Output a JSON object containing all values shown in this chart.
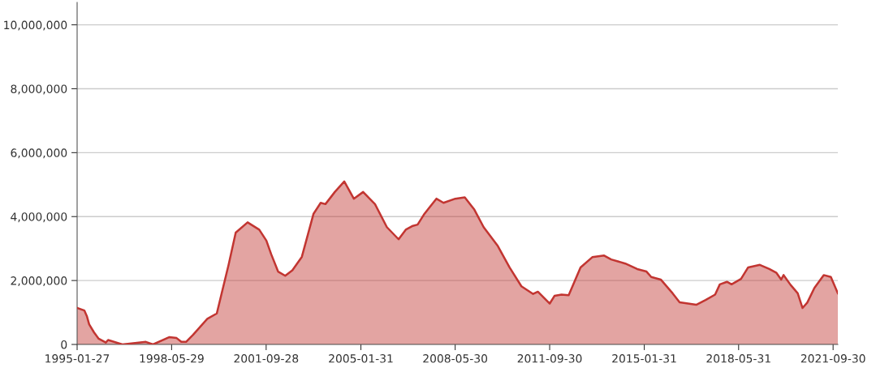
{
  "chart_data": {
    "type": "area",
    "x": [
      "1995-01-27",
      "1995-05",
      "1995-06",
      "1995-07",
      "1995-09",
      "1995-11",
      "1996-02",
      "1996-03",
      "1996-09",
      "1997-07",
      "1997-10",
      "1998-05",
      "1998-08",
      "1998-10",
      "1998-12",
      "1999-03",
      "1999-09",
      "2000-01",
      "2000-03",
      "2000-06",
      "2000-09",
      "2001-02",
      "2001-07",
      "2001-10",
      "2001-12",
      "2002-03",
      "2002-06",
      "2002-09",
      "2003-01",
      "2003-06",
      "2003-09",
      "2003-11",
      "2004-03",
      "2004-07",
      "2004-11",
      "2005-03",
      "2005-08",
      "2006-01",
      "2006-06",
      "2006-09",
      "2006-12",
      "2007-02",
      "2007-05",
      "2007-10",
      "2008-01",
      "2008-06",
      "2008-10",
      "2009-02",
      "2009-06",
      "2009-12",
      "2010-05",
      "2010-10",
      "2011-03",
      "2011-05",
      "2011-10",
      "2011-12",
      "2012-03",
      "2012-06",
      "2012-11",
      "2013-04",
      "2013-09",
      "2013-12",
      "2014-06",
      "2014-11",
      "2015-03",
      "2015-05",
      "2015-09",
      "2016-02",
      "2016-05",
      "2016-12",
      "2017-04",
      "2017-08",
      "2017-10",
      "2018-01",
      "2018-03",
      "2018-07",
      "2018-10",
      "2019-03",
      "2019-07",
      "2019-10",
      "2019-12",
      "2020-01",
      "2020-04",
      "2020-07",
      "2020-09",
      "2020-11",
      "2021-02",
      "2021-06",
      "2021-09",
      "2021-11-30"
    ],
    "series": [
      {
        "color": "#c23531",
        "values": [
          1140000,
          1060000,
          890000,
          630000,
          380000,
          180000,
          60000,
          140000,
          0,
          80000,
          0,
          230000,
          200000,
          80000,
          80000,
          300000,
          800000,
          970000,
          1570000,
          2490000,
          3500000,
          3820000,
          3590000,
          3250000,
          2830000,
          2280000,
          2150000,
          2320000,
          2740000,
          4090000,
          4430000,
          4390000,
          4770000,
          5100000,
          4560000,
          4770000,
          4390000,
          3670000,
          3290000,
          3590000,
          3710000,
          3750000,
          4090000,
          4560000,
          4430000,
          4560000,
          4600000,
          4220000,
          3670000,
          3080000,
          2410000,
          1820000,
          1580000,
          1650000,
          1280000,
          1520000,
          1560000,
          1540000,
          2410000,
          2730000,
          2780000,
          2660000,
          2530000,
          2360000,
          2280000,
          2110000,
          2030000,
          1600000,
          1320000,
          1240000,
          1390000,
          1560000,
          1880000,
          1960000,
          1880000,
          2050000,
          2410000,
          2490000,
          2360000,
          2240000,
          2030000,
          2170000,
          1860000,
          1600000,
          1140000,
          1310000,
          1770000,
          2170000,
          2110000,
          1600000
        ]
      }
    ],
    "xlim": [
      "1995-01-27",
      "2021-11-30"
    ],
    "xticks": [
      {
        "value": "1995-01-27",
        "label": "1995-01-27"
      },
      {
        "value": "1998-05-29",
        "label": "1998-05-29"
      },
      {
        "value": "2001-09-28",
        "label": "2001-09-28"
      },
      {
        "value": "2005-01-31",
        "label": "2005-01-31"
      },
      {
        "value": "2008-05-30",
        "label": "2008-05-30"
      },
      {
        "value": "2011-09-30",
        "label": "2011-09-30"
      },
      {
        "value": "2015-01-31",
        "label": "2015-01-31"
      },
      {
        "value": "2018-05-31",
        "label": "2018-05-31"
      },
      {
        "value": "2021-09-30",
        "label": "2021-09-30"
      }
    ],
    "ylim": [
      0,
      10700000
    ],
    "yticks": [
      0,
      {
        "value": 2000000,
        "label": "2,000,000"
      },
      {
        "value": 4000000,
        "label": "4,000,000"
      },
      {
        "value": 6000000,
        "label": "6,000,000"
      },
      {
        "value": 8000000,
        "label": "8,000,000"
      },
      {
        "value": 10000000,
        "label": "10,000,000"
      }
    ],
    "grid": "y",
    "legend": false,
    "marker": "none",
    "line_style": "solid"
  }
}
